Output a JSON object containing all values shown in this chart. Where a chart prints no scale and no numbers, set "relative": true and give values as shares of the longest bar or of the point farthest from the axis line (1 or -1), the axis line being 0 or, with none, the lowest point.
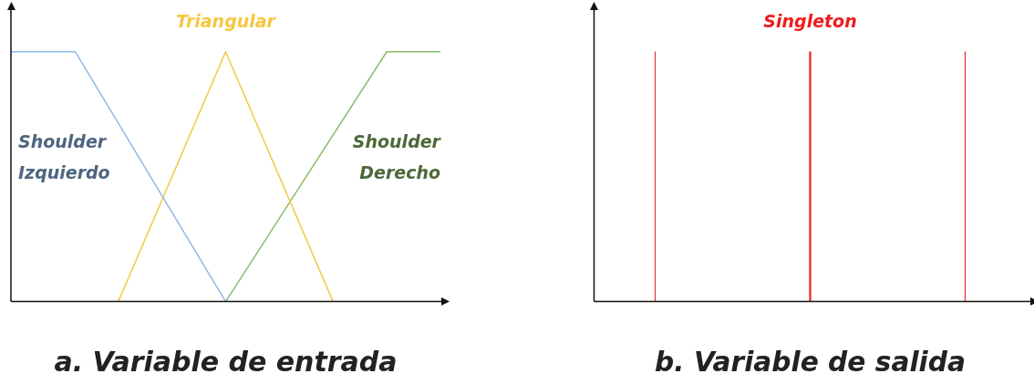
{
  "chart_data": [
    {
      "type": "line",
      "title": "a. Variable de entrada",
      "relative": true,
      "categories": [
        null,
        null,
        null,
        null,
        null,
        null,
        null,
        null,
        null,
        null,
        null,
        null,
        null,
        null,
        null,
        null,
        null,
        null,
        null,
        null,
        null,
        null,
        null,
        null,
        null,
        null,
        null,
        null,
        null,
        null,
        null,
        null,
        null,
        null,
        null,
        null,
        null,
        null,
        null,
        null,
        null
      ],
      "series": [
        {
          "name": "Shoulder Izquierdo",
          "color": "#8db9e6",
          "values": [
            1,
            null,
            null,
            null,
            null,
            null,
            1,
            null,
            null,
            null,
            null,
            null,
            null,
            null,
            null,
            null,
            null,
            null,
            null,
            null,
            0,
            null,
            null,
            null,
            null,
            null,
            null,
            null,
            null,
            null,
            null,
            null,
            null,
            null,
            null,
            null,
            null,
            null,
            null,
            null,
            null
          ]
        },
        {
          "name": "Triangular",
          "color": "#f5c842",
          "values": [
            null,
            null,
            null,
            null,
            null,
            null,
            null,
            null,
            null,
            null,
            0,
            null,
            null,
            null,
            null,
            null,
            null,
            null,
            null,
            null,
            1,
            null,
            null,
            null,
            null,
            null,
            null,
            null,
            null,
            null,
            0,
            null,
            null,
            null,
            null,
            null,
            null,
            null,
            null,
            null,
            null
          ]
        },
        {
          "name": "Shoulder Derecho",
          "color": "#8cbf6a",
          "values": [
            null,
            null,
            null,
            null,
            null,
            null,
            null,
            null,
            null,
            null,
            null,
            null,
            null,
            null,
            null,
            null,
            null,
            null,
            null,
            null,
            0,
            null,
            null,
            null,
            null,
            null,
            null,
            null,
            null,
            null,
            null,
            null,
            null,
            null,
            null,
            1,
            null,
            null,
            null,
            null,
            1
          ]
        }
      ]
    },
    {
      "type": "bar",
      "title": "b. Variable de salida",
      "relative": true,
      "categories": [
        null,
        null,
        null
      ],
      "series": [
        {
          "name": "Singleton",
          "color": "#ee1c1c",
          "values": [
            1,
            1,
            1
          ]
        }
      ]
    }
  ]
}
